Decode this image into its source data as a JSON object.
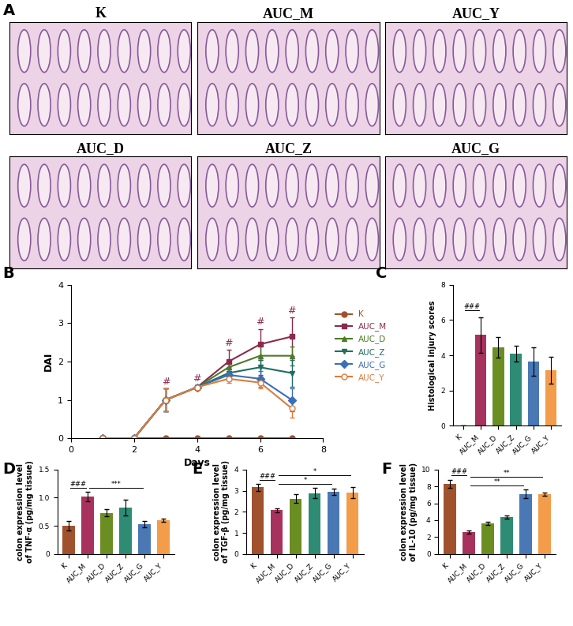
{
  "chart_data": [
    {
      "type": "image_grid",
      "panel": "A",
      "images": [
        "K",
        "AUC_M",
        "AUC_Y",
        "AUC_D",
        "AUC_Z",
        "AUC_G"
      ]
    },
    {
      "type": "line",
      "panel": "B",
      "x_label": "Days",
      "y_label": "DAI",
      "x": [
        1,
        2,
        3,
        4,
        5,
        6,
        7
      ],
      "xlim": [
        0,
        8
      ],
      "xticks": [
        0,
        2,
        4,
        6,
        8
      ],
      "ylim": [
        0,
        4
      ],
      "yticks": [
        0,
        1,
        2,
        3,
        4
      ],
      "legend": "center left",
      "series": [
        {
          "name": "K",
          "color": "#a0522d",
          "marker": "circle",
          "values": [
            0,
            0,
            0,
            0,
            0,
            0,
            0
          ],
          "errors": [
            0,
            0,
            0,
            0,
            0,
            0,
            0
          ]
        },
        {
          "name": "AUC_M",
          "color": "#8b2a4e",
          "marker": "square",
          "values": [
            0,
            0,
            1.0,
            1.33,
            2.0,
            2.45,
            2.65
          ],
          "errors": [
            0,
            0,
            0.3,
            0.05,
            0.3,
            0.4,
            0.5
          ]
        },
        {
          "name": "AUC_D",
          "color": "#4f7a28",
          "marker": "triangle_up",
          "values": [
            0,
            0,
            1.0,
            1.33,
            1.85,
            2.15,
            2.15
          ],
          "errors": [
            0,
            0,
            0.3,
            0.05,
            0.2,
            0.3,
            0.25
          ]
        },
        {
          "name": "AUC_Z",
          "color": "#1f6e60",
          "marker": "triangle_down",
          "values": [
            0,
            0,
            1.0,
            1.33,
            1.7,
            1.85,
            1.7
          ],
          "errors": [
            0,
            0,
            0.3,
            0.05,
            0.15,
            0.2,
            0.35
          ]
        },
        {
          "name": "AUC_G",
          "color": "#3b6fb6",
          "marker": "diamond",
          "values": [
            0,
            0,
            1.0,
            1.33,
            1.65,
            1.55,
            1.0
          ],
          "errors": [
            0,
            0,
            0.3,
            0.05,
            0.15,
            0.2,
            0.3
          ]
        },
        {
          "name": "AUC_Y",
          "color": "#e07b39",
          "marker": "open_circle",
          "values": [
            0,
            0,
            1.0,
            1.33,
            1.55,
            1.45,
            0.78
          ],
          "errors": [
            0,
            0,
            0.3,
            0.05,
            0.1,
            0.15,
            0.25
          ]
        }
      ],
      "annotations": [
        {
          "text": "#",
          "series": "AUC_M",
          "x": 3
        },
        {
          "text": "#",
          "series": "AUC_M",
          "x": 4
        },
        {
          "text": "#",
          "series": "AUC_M",
          "x": 5
        },
        {
          "text": "#",
          "series": "AUC_M",
          "x": 6
        },
        {
          "text": "#",
          "series": "AUC_M",
          "x": 7
        }
      ]
    },
    {
      "type": "bar",
      "panel": "C",
      "y_label": "Histological injury scores",
      "categories": [
        "K",
        "AUC_M",
        "AUC_D",
        "AUC_Z",
        "AUC_G",
        "AUC_Y"
      ],
      "values": [
        0,
        5.15,
        4.45,
        4.1,
        3.65,
        3.15
      ],
      "errors": [
        0,
        1.0,
        0.6,
        0.45,
        0.8,
        0.75
      ],
      "colors": [
        "#a0522d",
        "#a8325e",
        "#6b8e23",
        "#2e8b74",
        "#4a78b5",
        "#f39c4a"
      ],
      "ylim": [
        0,
        8
      ],
      "yticks": [
        0,
        2,
        4,
        6,
        8
      ],
      "annotations": [
        {
          "text": "###",
          "from": "K",
          "to": "AUC_M"
        }
      ]
    },
    {
      "type": "bar",
      "panel": "D",
      "y_label": "colon expression level\nof TNF-α (pg/mg tissue)",
      "categories": [
        "K",
        "AUC_M",
        "AUC_D",
        "AUC_Z",
        "AUC_G",
        "AUC_Y"
      ],
      "values": [
        0.5,
        1.02,
        0.73,
        0.83,
        0.53,
        0.6
      ],
      "errors": [
        0.08,
        0.08,
        0.06,
        0.14,
        0.05,
        0.03
      ],
      "colors": [
        "#a0522d",
        "#a8325e",
        "#6b8e23",
        "#2e8b74",
        "#4a78b5",
        "#f39c4a"
      ],
      "ylim": [
        0,
        1.5
      ],
      "yticks": [
        0,
        0.5,
        {
          "value": 1,
          "label": "1.0"
        },
        1.5
      ],
      "annotations": [
        {
          "text": "###",
          "from": "K",
          "to": "AUC_M"
        },
        {
          "text": "***",
          "from": "AUC_M",
          "to": "AUC_G"
        }
      ]
    },
    {
      "type": "bar",
      "panel": "E",
      "y_label": "colon expression level\nof TGF-β (pg/mg tissue)",
      "categories": [
        "K",
        "AUC_M",
        "AUC_D",
        "AUC_Z",
        "AUC_G",
        "AUC_Y"
      ],
      "values": [
        3.15,
        2.07,
        2.62,
        2.88,
        2.95,
        2.9
      ],
      "errors": [
        0.15,
        0.08,
        0.2,
        0.25,
        0.15,
        0.25
      ],
      "colors": [
        "#a0522d",
        "#a8325e",
        "#6b8e23",
        "#2e8b74",
        "#4a78b5",
        "#f39c4a"
      ],
      "ylim": [
        0,
        4
      ],
      "yticks": [
        0,
        1,
        2,
        3,
        4
      ],
      "annotations": [
        {
          "text": "###",
          "from": "K",
          "to": "AUC_M"
        },
        {
          "text": "*",
          "from": "AUC_M",
          "to": "AUC_G"
        },
        {
          "text": "*",
          "from": "AUC_M",
          "to": "AUC_Y"
        }
      ]
    },
    {
      "type": "bar",
      "panel": "F",
      "y_label": "colon expression level\nof IL-10 (pg/mg tissue)",
      "categories": [
        "K",
        "AUC_M",
        "AUC_D",
        "AUC_Z",
        "AUC_G",
        "AUC_Y"
      ],
      "values": [
        8.3,
        2.6,
        3.6,
        4.4,
        7.1,
        7.1
      ],
      "errors": [
        0.5,
        0.2,
        0.2,
        0.2,
        0.5,
        0.2
      ],
      "colors": [
        "#a0522d",
        "#a8325e",
        "#6b8e23",
        "#2e8b74",
        "#4a78b5",
        "#f39c4a"
      ],
      "ylim": [
        0,
        10
      ],
      "yticks": [
        0,
        2,
        4,
        6,
        8,
        10
      ],
      "annotations": [
        {
          "text": "###",
          "from": "K",
          "to": "AUC_M"
        },
        {
          "text": "**",
          "from": "AUC_M",
          "to": "AUC_G"
        },
        {
          "text": "**",
          "from": "AUC_M",
          "to": "AUC_Y"
        }
      ]
    }
  ]
}
